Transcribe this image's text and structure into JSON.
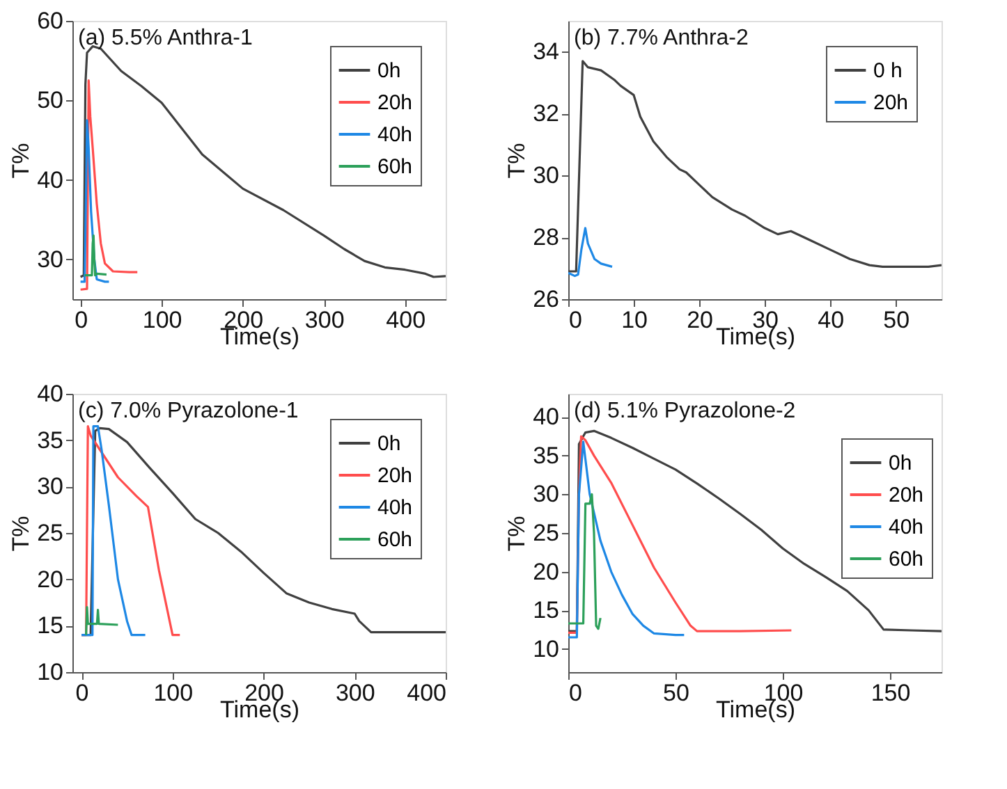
{
  "chart_data": [
    {
      "type": "line",
      "title": "(a) 5.5% Anthra-1",
      "xlabel": "Time(s)",
      "ylabel": "T%",
      "xlim": [
        -10,
        450
      ],
      "ylim": [
        25,
        60
      ],
      "xticks": [
        0,
        100,
        200,
        300,
        400
      ],
      "yticks": [
        30,
        40,
        50,
        60
      ],
      "grid": false,
      "legend": "top right",
      "marker": "none",
      "line_style": "solid",
      "series": [
        {
          "name": "0h",
          "color": "#404040",
          "x": [
            0,
            4,
            6,
            8,
            15,
            25,
            50,
            75,
            100,
            150,
            200,
            250,
            300,
            325,
            350,
            375,
            400,
            425,
            435,
            450
          ],
          "values": [
            27.8,
            28,
            52,
            56,
            56.8,
            56.5,
            53.7,
            51.8,
            49.7,
            43.2,
            38.9,
            36.2,
            33,
            31.3,
            29.8,
            29,
            28.7,
            28.2,
            27.8,
            27.9
          ]
        },
        {
          "name": "20h",
          "color": "#ff4d4d",
          "x": [
            0,
            8,
            9,
            10,
            12,
            15,
            20,
            25,
            30,
            40,
            60,
            70
          ],
          "values": [
            26.2,
            26.3,
            40,
            52.5,
            48,
            44,
            37,
            32,
            29.5,
            28.5,
            28.4,
            28.4
          ]
        },
        {
          "name": "40h",
          "color": "#1e88e5",
          "x": [
            0,
            5,
            7,
            8,
            10,
            13,
            17,
            20,
            30,
            35
          ],
          "values": [
            27.2,
            27.2,
            40,
            47.5,
            44,
            36,
            30,
            27.5,
            27.2,
            27.2
          ]
        },
        {
          "name": "60h",
          "color": "#2ca05a",
          "x": [
            5,
            14,
            15,
            16,
            17,
            18,
            20,
            32
          ],
          "values": [
            28,
            28,
            32,
            33,
            30,
            28,
            28.2,
            28.1
          ]
        }
      ]
    },
    {
      "type": "line",
      "title": "(b) 7.7% Anthra-2",
      "xlabel": "Time(s)",
      "ylabel": "T%",
      "xlim": [
        0,
        57
      ],
      "ylim": [
        26,
        35
      ],
      "xticks": [
        0,
        10,
        20,
        30,
        40,
        50
      ],
      "yticks": [
        26,
        28,
        30,
        32,
        34
      ],
      "grid": false,
      "legend": "top right",
      "marker": "none",
      "line_style": "solid",
      "series": [
        {
          "name": "0 h",
          "color": "#404040",
          "x": [
            0,
            1.2,
            2.2,
            3,
            5,
            7,
            8,
            10,
            11,
            13,
            15,
            17,
            18,
            20,
            22,
            25,
            27,
            30,
            32,
            34,
            37,
            40,
            43,
            46,
            48,
            52,
            55,
            57
          ],
          "values": [
            26.9,
            26.9,
            33.7,
            33.5,
            33.4,
            33.1,
            32.9,
            32.6,
            31.9,
            31.1,
            30.6,
            30.2,
            30.1,
            29.7,
            29.3,
            28.9,
            28.7,
            28.3,
            28.1,
            28.2,
            27.9,
            27.6,
            27.3,
            27.1,
            27.05,
            27.05,
            27.05,
            27.1
          ]
        },
        {
          "name": "20h",
          "color": "#1e88e5",
          "x": [
            0,
            1,
            1.5,
            2,
            2.6,
            3,
            4,
            5,
            6.7
          ],
          "values": [
            26.85,
            26.75,
            26.8,
            27.6,
            28.3,
            27.8,
            27.3,
            27.15,
            27.05
          ]
        }
      ]
    },
    {
      "type": "line",
      "title": "(c) 7.0% Pyrazolone-1",
      "xlabel": "Time(s)",
      "ylabel": "T%",
      "xlim": [
        -10,
        400
      ],
      "ylim": [
        10,
        40
      ],
      "xticks": [
        0,
        100,
        200,
        300,
        400
      ],
      "yticks": [
        10,
        15,
        20,
        25,
        30,
        35,
        40
      ],
      "grid": false,
      "legend": "top right",
      "marker": "none",
      "line_style": "solid",
      "series": [
        {
          "name": "0h",
          "color": "#404040",
          "x": [
            0,
            10,
            15,
            20,
            30,
            50,
            75,
            100,
            125,
            150,
            175,
            200,
            225,
            250,
            275,
            300,
            305,
            318,
            350,
            400
          ],
          "values": [
            14,
            14,
            36,
            36.3,
            36.2,
            34.8,
            32,
            29.3,
            26.5,
            25,
            23,
            20.7,
            18.5,
            17.5,
            16.8,
            16.3,
            15.5,
            14.3,
            14.3,
            14.3
          ]
        },
        {
          "name": "20h",
          "color": "#ff4d4d",
          "x": [
            0,
            5,
            7,
            10,
            20,
            40,
            60,
            73,
            85,
            100,
            108
          ],
          "values": [
            14,
            14,
            36.5,
            35.5,
            34,
            31,
            29,
            27.8,
            21,
            14,
            14
          ]
        },
        {
          "name": "40h",
          "color": "#1e88e5",
          "x": [
            0,
            12,
            13,
            18,
            22,
            30,
            40,
            50,
            55,
            70
          ],
          "values": [
            14,
            14,
            36.5,
            36.5,
            34,
            28,
            20,
            15.5,
            14,
            14
          ]
        },
        {
          "name": "60h",
          "color": "#2ca05a",
          "x": [
            5,
            6,
            7,
            15,
            17,
            18,
            19,
            40
          ],
          "values": [
            14,
            17,
            15.2,
            15.2,
            15.2,
            16.7,
            15.2,
            15.1
          ]
        }
      ]
    },
    {
      "type": "line",
      "title": "(d) 5.1% Pyrazolone-2",
      "xlabel": "Time(s)",
      "ylabel": "T%",
      "xlim": [
        0,
        174
      ],
      "ylim": [
        7,
        43
      ],
      "xticks": [
        0,
        50,
        100,
        150
      ],
      "yticks": [
        10,
        15,
        20,
        25,
        30,
        35,
        40
      ],
      "grid": false,
      "legend": "right",
      "marker": "none",
      "line_style": "solid",
      "series": [
        {
          "name": "0h",
          "color": "#404040",
          "x": [
            0,
            4,
            5,
            8,
            12,
            20,
            30,
            40,
            50,
            60,
            70,
            80,
            90,
            100,
            110,
            120,
            130,
            140,
            147,
            160,
            174
          ],
          "values": [
            12.3,
            12.3,
            36.5,
            38,
            38.2,
            37.3,
            36,
            34.6,
            33.2,
            31.4,
            29.5,
            27.5,
            25.4,
            23,
            21,
            19.3,
            17.5,
            15,
            12.5,
            12.4,
            12.3
          ]
        },
        {
          "name": "20h",
          "color": "#ff4d4d",
          "x": [
            0,
            4,
            5,
            6,
            8,
            12,
            20,
            30,
            40,
            50,
            57,
            60,
            80,
            104
          ],
          "values": [
            12.1,
            12.1,
            30,
            37.5,
            37,
            35,
            31.5,
            26,
            20.5,
            16,
            13,
            12.3,
            12.3,
            12.4
          ]
        },
        {
          "name": "40h",
          "color": "#1e88e5",
          "x": [
            0,
            4,
            5,
            7,
            10,
            15,
            20,
            25,
            30,
            35,
            40,
            50,
            54
          ],
          "values": [
            11.5,
            11.5,
            30,
            36.8,
            30,
            24,
            20,
            17,
            14.5,
            13,
            12,
            11.8,
            11.8
          ]
        },
        {
          "name": "60h",
          "color": "#2ca05a",
          "x": [
            0,
            7,
            8,
            10,
            11,
            12,
            13,
            14,
            15
          ],
          "values": [
            13.3,
            13.3,
            28.8,
            28.8,
            30,
            25,
            13,
            12.6,
            14
          ]
        }
      ]
    }
  ]
}
